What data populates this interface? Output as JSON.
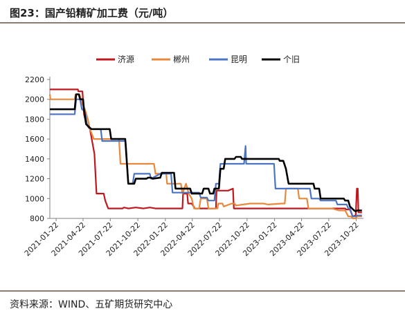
{
  "header": {
    "title": "图23：国产铅精矿加工费（元/吨）"
  },
  "footer": {
    "source": "资料来源：WIND、五矿期货研究中心"
  },
  "chart_data": {
    "type": "line",
    "title": "图23：国产铅精矿加工费（元/吨）",
    "xlabel": "",
    "ylabel": "",
    "ylim": [
      800,
      2200
    ],
    "yticks": [
      "800",
      "1000",
      "1200",
      "1400",
      "1600",
      "1800",
      "2000",
      "2200"
    ],
    "xlim": [
      "2021-01-01",
      "2023-11-15"
    ],
    "xticks": [
      "2021-01-22",
      "2021-04-22",
      "2021-07-22",
      "2021-10-22",
      "2022-01-22",
      "2022-04-22",
      "2022-07-22",
      "2022-10-22",
      "2023-01-22",
      "2023-04-22",
      "2023-07-22",
      "2023-10-22"
    ],
    "grid": false,
    "legend_position": "top",
    "series": [
      {
        "name": "济源",
        "color": "#c0161e",
        "points": [
          [
            "2021-01-01",
            2100
          ],
          [
            "2021-04-05",
            2100
          ],
          [
            "2021-04-06",
            2080
          ],
          [
            "2021-04-20",
            2080
          ],
          [
            "2021-04-25",
            1850
          ],
          [
            "2021-05-03",
            1750
          ],
          [
            "2021-05-15",
            1700
          ],
          [
            "2021-05-30",
            1450
          ],
          [
            "2021-06-06",
            1050
          ],
          [
            "2021-06-30",
            1050
          ],
          [
            "2021-07-05",
            980
          ],
          [
            "2021-07-15",
            900
          ],
          [
            "2021-09-01",
            900
          ],
          [
            "2021-09-05",
            910
          ],
          [
            "2021-09-20",
            900
          ],
          [
            "2021-10-15",
            910
          ],
          [
            "2021-11-10",
            900
          ],
          [
            "2021-12-01",
            910
          ],
          [
            "2021-12-20",
            900
          ],
          [
            "2022-03-20",
            900
          ],
          [
            "2022-03-22",
            1050
          ],
          [
            "2022-04-05",
            1050
          ],
          [
            "2022-04-08",
            950
          ],
          [
            "2022-04-20",
            950
          ],
          [
            "2022-05-01",
            900
          ],
          [
            "2022-07-10",
            900
          ],
          [
            "2022-07-12",
            1080
          ],
          [
            "2022-08-20",
            1080
          ],
          [
            "2022-09-05",
            1100
          ],
          [
            "2022-09-08",
            900
          ],
          [
            "2023-02-01",
            900
          ],
          [
            "2023-05-01",
            900
          ],
          [
            "2023-09-15",
            900
          ],
          [
            "2023-09-18",
            890
          ],
          [
            "2023-10-01",
            890
          ],
          [
            "2023-10-10",
            820
          ],
          [
            "2023-10-20",
            830
          ],
          [
            "2023-10-24",
            1100
          ],
          [
            "2023-10-27",
            1100
          ],
          [
            "2023-10-29",
            860
          ],
          [
            "2023-11-10",
            860
          ]
        ]
      },
      {
        "name": "郴州",
        "color": "#e8883a",
        "points": [
          [
            "2021-01-01",
            2050
          ],
          [
            "2021-01-03",
            2000
          ],
          [
            "2021-03-25",
            2000
          ],
          [
            "2021-03-28",
            2050
          ],
          [
            "2021-04-10",
            2050
          ],
          [
            "2021-04-20",
            1950
          ],
          [
            "2021-04-28",
            1900
          ],
          [
            "2021-05-08",
            1800
          ],
          [
            "2021-05-15",
            1700
          ],
          [
            "2021-05-28",
            1600
          ],
          [
            "2021-08-20",
            1600
          ],
          [
            "2021-08-25",
            1350
          ],
          [
            "2021-12-15",
            1350
          ],
          [
            "2021-12-20",
            1250
          ],
          [
            "2022-01-25",
            1250
          ],
          [
            "2022-01-28",
            1150
          ],
          [
            "2022-03-15",
            1150
          ],
          [
            "2022-03-20",
            1050
          ],
          [
            "2022-04-01",
            1150
          ],
          [
            "2022-04-10",
            1050
          ],
          [
            "2022-04-20",
            1000
          ],
          [
            "2022-04-28",
            900
          ],
          [
            "2022-05-15",
            900
          ],
          [
            "2022-05-20",
            1000
          ],
          [
            "2022-06-10",
            1000
          ],
          [
            "2022-06-15",
            900
          ],
          [
            "2022-07-15",
            900
          ],
          [
            "2022-07-18",
            950
          ],
          [
            "2022-08-01",
            950
          ],
          [
            "2022-08-05",
            920
          ],
          [
            "2022-09-01",
            950
          ],
          [
            "2022-09-10",
            950
          ],
          [
            "2022-09-15",
            930
          ],
          [
            "2022-11-01",
            950
          ],
          [
            "2022-12-15",
            950
          ],
          [
            "2023-01-01",
            940
          ],
          [
            "2023-02-15",
            950
          ],
          [
            "2023-02-25",
            950
          ],
          [
            "2023-03-01",
            1100
          ],
          [
            "2023-04-10",
            1100
          ],
          [
            "2023-04-14",
            1000
          ],
          [
            "2023-05-10",
            1000
          ],
          [
            "2023-05-15",
            900
          ],
          [
            "2023-08-01",
            900
          ],
          [
            "2023-08-25",
            880
          ],
          [
            "2023-09-15",
            880
          ],
          [
            "2023-09-25",
            820
          ],
          [
            "2023-10-05",
            820
          ],
          [
            "2023-10-10",
            800
          ],
          [
            "2023-10-20",
            800
          ],
          [
            "2023-10-25",
            820
          ],
          [
            "2023-11-10",
            820
          ]
        ]
      },
      {
        "name": "昆明",
        "color": "#4a74c3",
        "points": [
          [
            "2021-01-01",
            1850
          ],
          [
            "2021-03-25",
            1850
          ],
          [
            "2021-03-30",
            2000
          ],
          [
            "2021-04-12",
            2000
          ],
          [
            "2021-04-18",
            1900
          ],
          [
            "2021-04-28",
            1880
          ],
          [
            "2021-05-05",
            1750
          ],
          [
            "2021-05-18",
            1700
          ],
          [
            "2021-06-20",
            1700
          ],
          [
            "2021-06-25",
            1580
          ],
          [
            "2021-09-10",
            1580
          ],
          [
            "2021-09-12",
            1550
          ],
          [
            "2021-09-20",
            1150
          ],
          [
            "2021-10-05",
            1150
          ],
          [
            "2021-10-10",
            1250
          ],
          [
            "2021-12-01",
            1250
          ],
          [
            "2021-12-05",
            1200
          ],
          [
            "2022-01-05",
            1250
          ],
          [
            "2022-02-10",
            1250
          ],
          [
            "2022-02-15",
            1060
          ],
          [
            "2022-05-15",
            1060
          ],
          [
            "2022-05-20",
            1010
          ],
          [
            "2022-06-10",
            1010
          ],
          [
            "2022-06-15",
            980
          ],
          [
            "2022-07-05",
            980
          ],
          [
            "2022-07-10",
            1150
          ],
          [
            "2022-07-20",
            1150
          ],
          [
            "2022-07-25",
            1350
          ],
          [
            "2022-10-12",
            1350
          ],
          [
            "2022-10-17",
            1530
          ],
          [
            "2022-10-19",
            1350
          ],
          [
            "2023-01-20",
            1350
          ],
          [
            "2023-01-25",
            1100
          ],
          [
            "2023-05-20",
            1100
          ],
          [
            "2023-05-25",
            1000
          ],
          [
            "2023-06-20",
            1000
          ],
          [
            "2023-06-25",
            980
          ],
          [
            "2023-08-15",
            980
          ],
          [
            "2023-08-20",
            940
          ],
          [
            "2023-09-20",
            940
          ],
          [
            "2023-09-25",
            900
          ],
          [
            "2023-10-01",
            900
          ],
          [
            "2023-10-10",
            820
          ],
          [
            "2023-10-20",
            820
          ],
          [
            "2023-10-25",
            830
          ],
          [
            "2023-11-10",
            830
          ]
        ]
      },
      {
        "name": "个旧",
        "color": "#000000",
        "points": [
          [
            "2021-01-01",
            1900
          ],
          [
            "2021-03-25",
            1900
          ],
          [
            "2021-03-30",
            2050
          ],
          [
            "2021-04-08",
            2050
          ],
          [
            "2021-04-12",
            2000
          ],
          [
            "2021-04-22",
            2000
          ],
          [
            "2021-04-25",
            1900
          ],
          [
            "2021-05-02",
            1750
          ],
          [
            "2021-05-12",
            1720
          ],
          [
            "2021-05-20",
            1700
          ],
          [
            "2021-07-20",
            1700
          ],
          [
            "2021-07-25",
            1600
          ],
          [
            "2021-09-10",
            1600
          ],
          [
            "2021-09-20",
            1150
          ],
          [
            "2021-10-10",
            1150
          ],
          [
            "2021-10-15",
            1200
          ],
          [
            "2021-11-20",
            1200
          ],
          [
            "2021-11-25",
            1210
          ],
          [
            "2021-12-05",
            1210
          ],
          [
            "2021-12-10",
            1200
          ],
          [
            "2022-01-05",
            1210
          ],
          [
            "2022-01-10",
            1260
          ],
          [
            "2022-02-20",
            1260
          ],
          [
            "2022-02-25",
            1100
          ],
          [
            "2022-04-15",
            1100
          ],
          [
            "2022-04-20",
            1050
          ],
          [
            "2022-05-25",
            1050
          ],
          [
            "2022-05-30",
            1100
          ],
          [
            "2022-06-15",
            1100
          ],
          [
            "2022-06-20",
            1050
          ],
          [
            "2022-07-01",
            1050
          ],
          [
            "2022-07-05",
            1100
          ],
          [
            "2022-07-20",
            1100
          ],
          [
            "2022-07-25",
            1300
          ],
          [
            "2022-08-05",
            1300
          ],
          [
            "2022-08-10",
            1400
          ],
          [
            "2022-09-10",
            1400
          ],
          [
            "2022-09-15",
            1420
          ],
          [
            "2022-10-01",
            1420
          ],
          [
            "2022-10-05",
            1400
          ],
          [
            "2023-02-05",
            1400
          ],
          [
            "2023-02-08",
            1380
          ],
          [
            "2023-02-20",
            1380
          ],
          [
            "2023-03-01",
            1300
          ],
          [
            "2023-03-10",
            1150
          ],
          [
            "2023-06-01",
            1150
          ],
          [
            "2023-06-05",
            1100
          ],
          [
            "2023-06-20",
            1100
          ],
          [
            "2023-06-25",
            1000
          ],
          [
            "2023-09-10",
            1000
          ],
          [
            "2023-09-15",
            980
          ],
          [
            "2023-09-25",
            980
          ],
          [
            "2023-10-01",
            920
          ],
          [
            "2023-10-15",
            880
          ],
          [
            "2023-10-20",
            870
          ],
          [
            "2023-10-25",
            880
          ],
          [
            "2023-11-10",
            880
          ]
        ]
      }
    ]
  }
}
